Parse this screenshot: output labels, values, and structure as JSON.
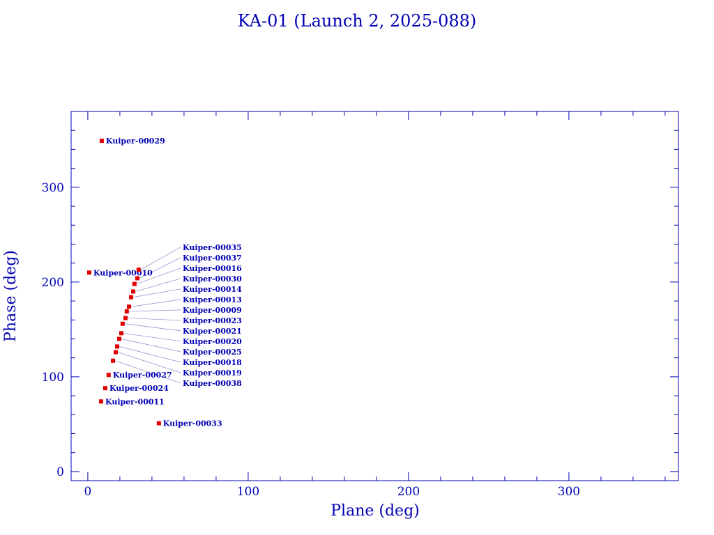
{
  "chart_data": {
    "type": "scatter",
    "title": "KA-01 (Launch 2, 2025-088)",
    "xlabel": "Plane (deg)",
    "ylabel": "Phase (deg)",
    "xlim": [
      -10.4,
      368.3
    ],
    "ylim": [
      -9.6,
      380
    ],
    "xticks": [
      0,
      100,
      200,
      300
    ],
    "yticks": [
      0,
      100,
      200,
      300
    ],
    "xtick_labels": [
      "0",
      "100",
      "200",
      "300"
    ],
    "ytick_labels": [
      "0",
      "100",
      "200",
      "300"
    ],
    "minor_step": 20,
    "grid": false,
    "colors": {
      "axis": "#0000b4",
      "point": "#e00000",
      "label": "#0000b4"
    },
    "points": [
      {
        "label": "Kuiper-00029",
        "x": 8.7,
        "y": 349
      },
      {
        "label": "Kuiper-00010",
        "x": 0.9,
        "y": 210
      },
      {
        "label": "Kuiper-00035",
        "x": 31.7,
        "y": 213
      },
      {
        "label": "Kuiper-00037",
        "x": 30.9,
        "y": 204
      },
      {
        "label": "Kuiper-00016",
        "x": 29.1,
        "y": 198
      },
      {
        "label": "Kuiper-00030",
        "x": 28.3,
        "y": 190
      },
      {
        "label": "Kuiper-00014",
        "x": 27.0,
        "y": 184
      },
      {
        "label": "Kuiper-00013",
        "x": 25.7,
        "y": 174
      },
      {
        "label": "Kuiper-00009",
        "x": 24.3,
        "y": 169
      },
      {
        "label": "Kuiper-00023",
        "x": 23.5,
        "y": 162
      },
      {
        "label": "Kuiper-00021",
        "x": 21.7,
        "y": 156
      },
      {
        "label": "Kuiper-00020",
        "x": 20.9,
        "y": 146
      },
      {
        "label": "Kuiper-00025",
        "x": 19.6,
        "y": 140
      },
      {
        "label": "Kuiper-00018",
        "x": 18.3,
        "y": 132
      },
      {
        "label": "Kuiper-00019",
        "x": 17.4,
        "y": 126
      },
      {
        "label": "Kuiper-00038",
        "x": 15.7,
        "y": 117
      },
      {
        "label": "Kuiper-00027",
        "x": 13.0,
        "y": 102
      },
      {
        "label": "Kuiper-00024",
        "x": 10.9,
        "y": 88
      },
      {
        "label": "Kuiper-00011",
        "x": 8.3,
        "y": 74
      },
      {
        "label": "Kuiper-00033",
        "x": 44.3,
        "y": 51
      }
    ]
  }
}
